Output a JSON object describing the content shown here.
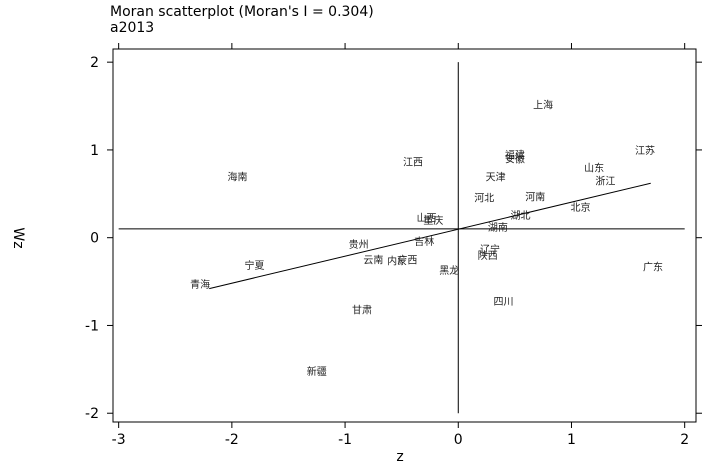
{
  "chart_data": {
    "type": "scatter",
    "title": "Moran scatterplot (Moran's I = 0.304)",
    "subtitle": "a2013",
    "xlabel": "z",
    "ylabel": "Wz",
    "xlim": [
      -3.05,
      2.1
    ],
    "ylim": [
      -2.1,
      2.15
    ],
    "xticks": [
      -3,
      -2,
      -1,
      0,
      1,
      2
    ],
    "yticks": [
      -2,
      -1,
      0,
      1,
      2
    ],
    "grid": false,
    "regression_line": {
      "x": [
        -2.2,
        1.7
      ],
      "y": [
        -0.58,
        0.62
      ]
    },
    "reference_lines": {
      "x": 0,
      "y": 0.1
    },
    "points": [
      {
        "label": "上海",
        "x": 0.75,
        "y": 1.52
      },
      {
        "label": "江苏",
        "x": 1.65,
        "y": 1.0
      },
      {
        "label": "山东",
        "x": 1.2,
        "y": 0.8
      },
      {
        "label": "浙江",
        "x": 1.3,
        "y": 0.65
      },
      {
        "label": "北京",
        "x": 1.08,
        "y": 0.35
      },
      {
        "label": "福建",
        "x": 0.5,
        "y": 0.95
      },
      {
        "label": "安徽",
        "x": 0.5,
        "y": 0.9
      },
      {
        "label": "天津",
        "x": 0.33,
        "y": 0.7
      },
      {
        "label": "河北",
        "x": 0.23,
        "y": 0.46
      },
      {
        "label": "河南",
        "x": 0.68,
        "y": 0.47
      },
      {
        "label": "湖北",
        "x": 0.55,
        "y": 0.26
      },
      {
        "label": "湖南",
        "x": 0.35,
        "y": 0.12
      },
      {
        "label": "江西",
        "x": -0.4,
        "y": 0.87
      },
      {
        "label": "海南",
        "x": -1.95,
        "y": 0.7
      },
      {
        "label": "山西",
        "x": -0.28,
        "y": 0.23
      },
      {
        "label": "重庆",
        "x": -0.22,
        "y": 0.2
      },
      {
        "label": "吉林",
        "x": -0.3,
        "y": -0.04
      },
      {
        "label": "贵州",
        "x": -0.88,
        "y": -0.07
      },
      {
        "label": "辽宁",
        "x": 0.28,
        "y": -0.13
      },
      {
        "label": "陕西",
        "x": 0.26,
        "y": -0.2
      },
      {
        "label": "云南",
        "x": -0.75,
        "y": -0.25
      },
      {
        "label": "内蒙",
        "x": -0.54,
        "y": -0.26
      },
      {
        "label": "广西",
        "x": -0.45,
        "y": -0.25
      },
      {
        "label": "黑龙",
        "x": -0.08,
        "y": -0.37
      },
      {
        "label": "广东",
        "x": 1.72,
        "y": -0.33
      },
      {
        "label": "宁夏",
        "x": -1.8,
        "y": -0.31
      },
      {
        "label": "青海",
        "x": -2.28,
        "y": -0.53
      },
      {
        "label": "四川",
        "x": 0.4,
        "y": -0.72
      },
      {
        "label": "甘肃",
        "x": -0.85,
        "y": -0.82
      },
      {
        "label": "新疆",
        "x": -1.25,
        "y": -1.52
      }
    ]
  }
}
